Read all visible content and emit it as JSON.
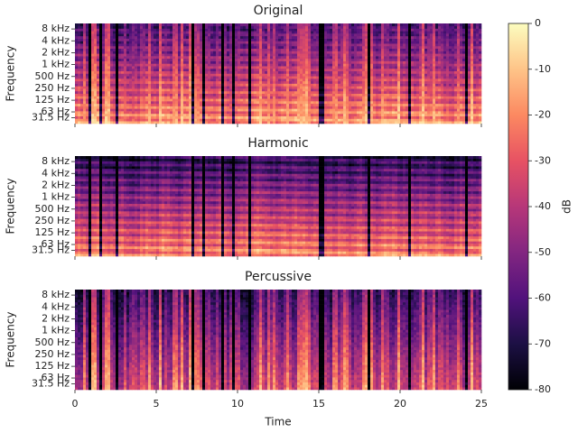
{
  "chart_data": [
    {
      "type": "spectrogram",
      "title": "Original",
      "ylabel": "Frequency",
      "yscale": "symlog",
      "linthresh": 64,
      "ylim": [
        0,
        11025
      ],
      "yticks": [
        {
          "value": 31.5,
          "label": "31.5 Hz"
        },
        {
          "value": 63,
          "label": "63 Hz"
        },
        {
          "value": 125,
          "label": "125 Hz"
        },
        {
          "value": 250,
          "label": "250 Hz"
        },
        {
          "value": 500,
          "label": "500 Hz"
        },
        {
          "value": 1000,
          "label": "1 kHz"
        },
        {
          "value": 2000,
          "label": "2 kHz"
        },
        {
          "value": 4000,
          "label": "4 kHz"
        },
        {
          "value": 8000,
          "label": "8 kHz"
        }
      ],
      "xlim": [
        0,
        25
      ]
    },
    {
      "type": "spectrogram",
      "title": "Harmonic",
      "ylabel": "Frequency",
      "yscale": "symlog",
      "linthresh": 64,
      "ylim": [
        0,
        11025
      ],
      "yticks": [
        {
          "value": 31.5,
          "label": "31.5 Hz"
        },
        {
          "value": 63,
          "label": "63 Hz"
        },
        {
          "value": 125,
          "label": "125 Hz"
        },
        {
          "value": 250,
          "label": "250 Hz"
        },
        {
          "value": 500,
          "label": "500 Hz"
        },
        {
          "value": 1000,
          "label": "1 kHz"
        },
        {
          "value": 2000,
          "label": "2 kHz"
        },
        {
          "value": 4000,
          "label": "4 kHz"
        },
        {
          "value": 8000,
          "label": "8 kHz"
        }
      ],
      "xlim": [
        0,
        25
      ]
    },
    {
      "type": "spectrogram",
      "title": "Percussive",
      "ylabel": "Frequency",
      "xlabel": "Time",
      "yscale": "symlog",
      "linthresh": 64,
      "ylim": [
        0,
        11025
      ],
      "yticks": [
        {
          "value": 31.5,
          "label": "31.5 Hz"
        },
        {
          "value": 63,
          "label": "63 Hz"
        },
        {
          "value": 125,
          "label": "125 Hz"
        },
        {
          "value": 250,
          "label": "250 Hz"
        },
        {
          "value": 500,
          "label": "500 Hz"
        },
        {
          "value": 1000,
          "label": "1 kHz"
        },
        {
          "value": 2000,
          "label": "2 kHz"
        },
        {
          "value": 4000,
          "label": "4 kHz"
        },
        {
          "value": 8000,
          "label": "8 kHz"
        }
      ],
      "xlim": [
        0,
        25
      ],
      "xticks": [
        0,
        5,
        10,
        15,
        20,
        25
      ]
    }
  ],
  "colorbar": {
    "label": "dB",
    "colormap": "magma",
    "clim": [
      -80,
      0
    ],
    "ticks": [
      0,
      -10,
      -20,
      -30,
      -40,
      -50,
      -60,
      -70,
      -80
    ]
  }
}
